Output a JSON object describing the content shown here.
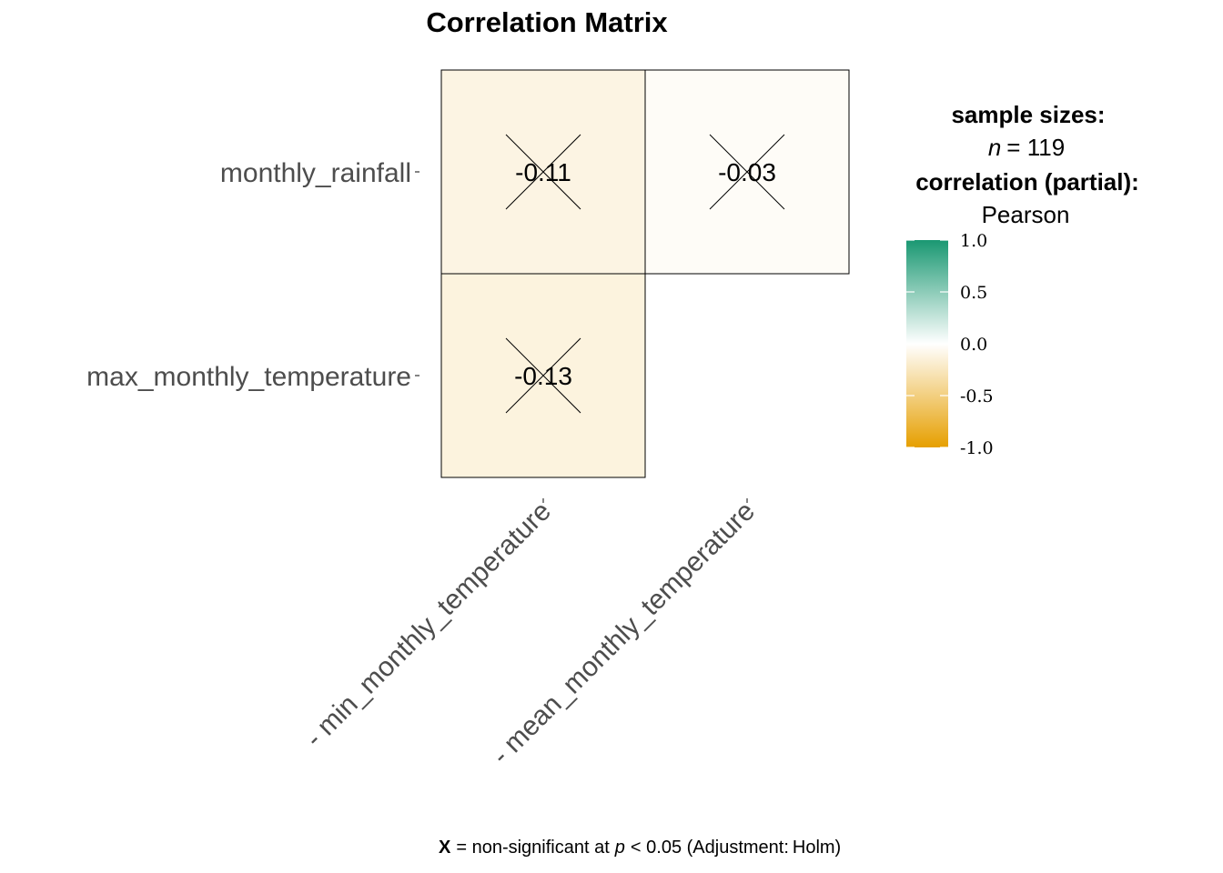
{
  "chart_data": {
    "type": "heatmap",
    "title": "Correlation Matrix",
    "rows": [
      "monthly_rainfall",
      "max_monthly_temperature"
    ],
    "columns": [
      "min_monthly_temperature",
      "mean_monthly_temperature"
    ],
    "cells": [
      {
        "row": "monthly_rainfall",
        "column": "min_monthly_temperature",
        "value": -0.11,
        "label": "-0.11",
        "non_significant": true
      },
      {
        "row": "monthly_rainfall",
        "column": "mean_monthly_temperature",
        "value": -0.03,
        "label": "-0.03",
        "non_significant": true
      },
      {
        "row": "max_monthly_temperature",
        "column": "min_monthly_temperature",
        "value": -0.13,
        "label": "-0.13",
        "non_significant": true
      }
    ],
    "legend": {
      "heading_sample": "sample sizes:",
      "n_symbol": "n",
      "n_rest": "= 119",
      "heading_corr": "correlation (partial):",
      "method": "Pearson",
      "scale_min": -1.0,
      "scale_max": 1.0,
      "ticks": [
        1.0,
        0.5,
        0.0,
        -0.5,
        -1.0
      ],
      "tick_labels": [
        "1.0",
        "0.5",
        "0.0",
        "-0.5",
        "-1.0"
      ],
      "colors": {
        "high": "#1a9872",
        "mid": "#ffffff",
        "low": "#e69f00"
      }
    },
    "caption": {
      "symbol": "X",
      "text_a": "= non-significant at",
      "p_symbol": "p",
      "text_b": "< 0.05 (Adjustment:",
      "text_c": "Holm)"
    },
    "grid": false
  }
}
